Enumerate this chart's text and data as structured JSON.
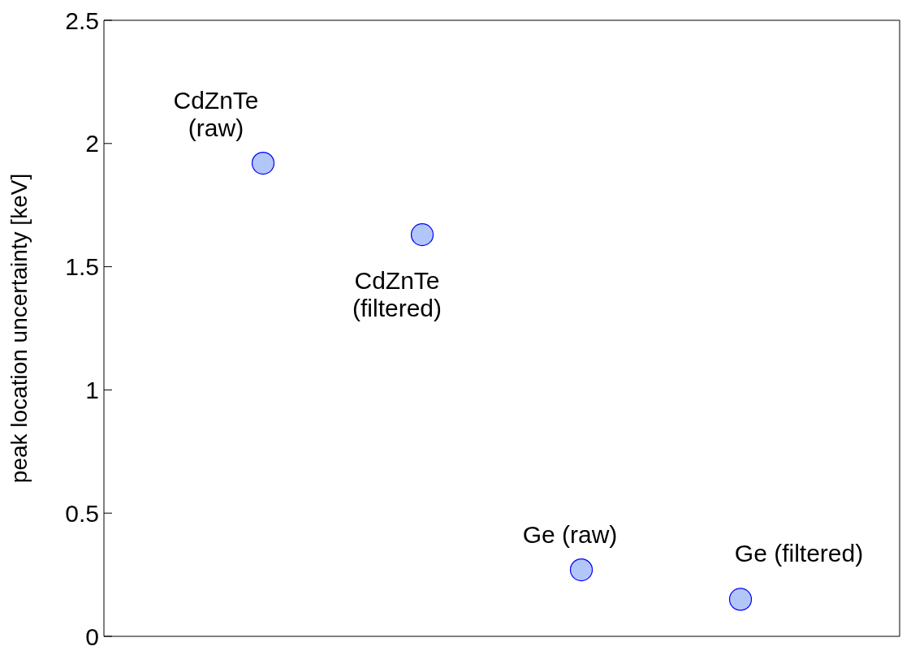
{
  "chart_data": {
    "type": "scatter",
    "ylabel": "peak location uncertainty [keV]",
    "categories": [
      null,
      null,
      null,
      null
    ],
    "series": [
      {
        "color": "#b3c6f8",
        "values": [
          1.92,
          1.63,
          0.27,
          0.15
        ]
      }
    ],
    "ylim": [
      0,
      2.5
    ],
    "yticks": [
      0,
      0.5,
      1,
      1.5,
      2,
      2.5
    ],
    "tick_labels": "y",
    "marker": "circle",
    "grid": false,
    "annotations": [
      "CdZnTe\n(raw)",
      "CdZnTe\n(filtered)",
      "Ge (raw)",
      "Ge (filtered)"
    ]
  }
}
